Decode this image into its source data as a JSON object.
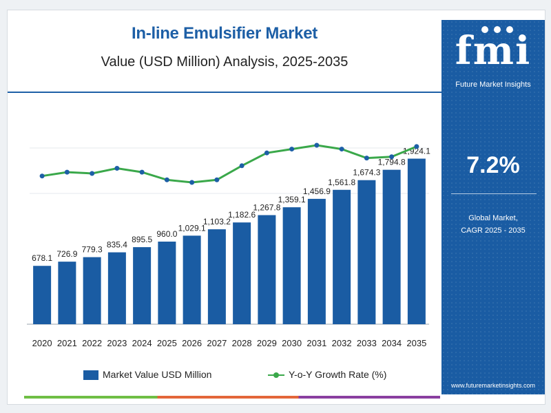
{
  "header": {
    "title": "In-line Emulsifier Market",
    "subtitle": "Value (USD Million) Analysis, 2025-2035"
  },
  "sidebar": {
    "logo_text": "fmi",
    "logo_subtitle": "Future Market Insights",
    "cagr_value": "7.2%",
    "cagr_label_line1": "Global Market,",
    "cagr_label_line2": "CAGR 2025 - 2035",
    "website": "www.futuremarketinsights.com"
  },
  "legend": {
    "bar_label": "Market Value USD Million",
    "line_label": "Y-o-Y Growth Rate (%)"
  },
  "colors": {
    "bar": "#1a5ca3",
    "line": "#3aa84a",
    "accent": "#1d5fa6"
  },
  "chart_data": {
    "type": "bar",
    "categories": [
      "2020",
      "2021",
      "2022",
      "2023",
      "2024",
      "2025",
      "2026",
      "2027",
      "2028",
      "2029",
      "2030",
      "2031",
      "2032",
      "2033",
      "2034",
      "2035"
    ],
    "series": [
      {
        "name": "Market Value USD Million",
        "type": "bar",
        "values": [
          678.1,
          726.9,
          779.3,
          835.4,
          895.5,
          960.0,
          1029.1,
          1103.2,
          1182.6,
          1267.8,
          1359.1,
          1456.9,
          1561.8,
          1674.3,
          1794.8,
          1924.1
        ],
        "labels": [
          "678.1",
          "726.9",
          "779.3",
          "835.4",
          "895.5",
          "960.0",
          "1,029.1",
          "1,103.2",
          "1,182.6",
          "1,267.8",
          "1,359.1",
          "1,456.9",
          "1,561.8",
          "1,674.3",
          "1,794.8",
          "1,924.1"
        ]
      },
      {
        "name": "Y-o-Y Growth Rate (%)",
        "type": "line",
        "values": [
          6.9,
          7.2,
          7.1,
          7.5,
          7.2,
          6.6,
          6.4,
          6.6,
          7.7,
          8.7,
          9.0,
          9.3,
          9.0,
          8.3,
          8.4,
          9.2
        ]
      }
    ]
  }
}
